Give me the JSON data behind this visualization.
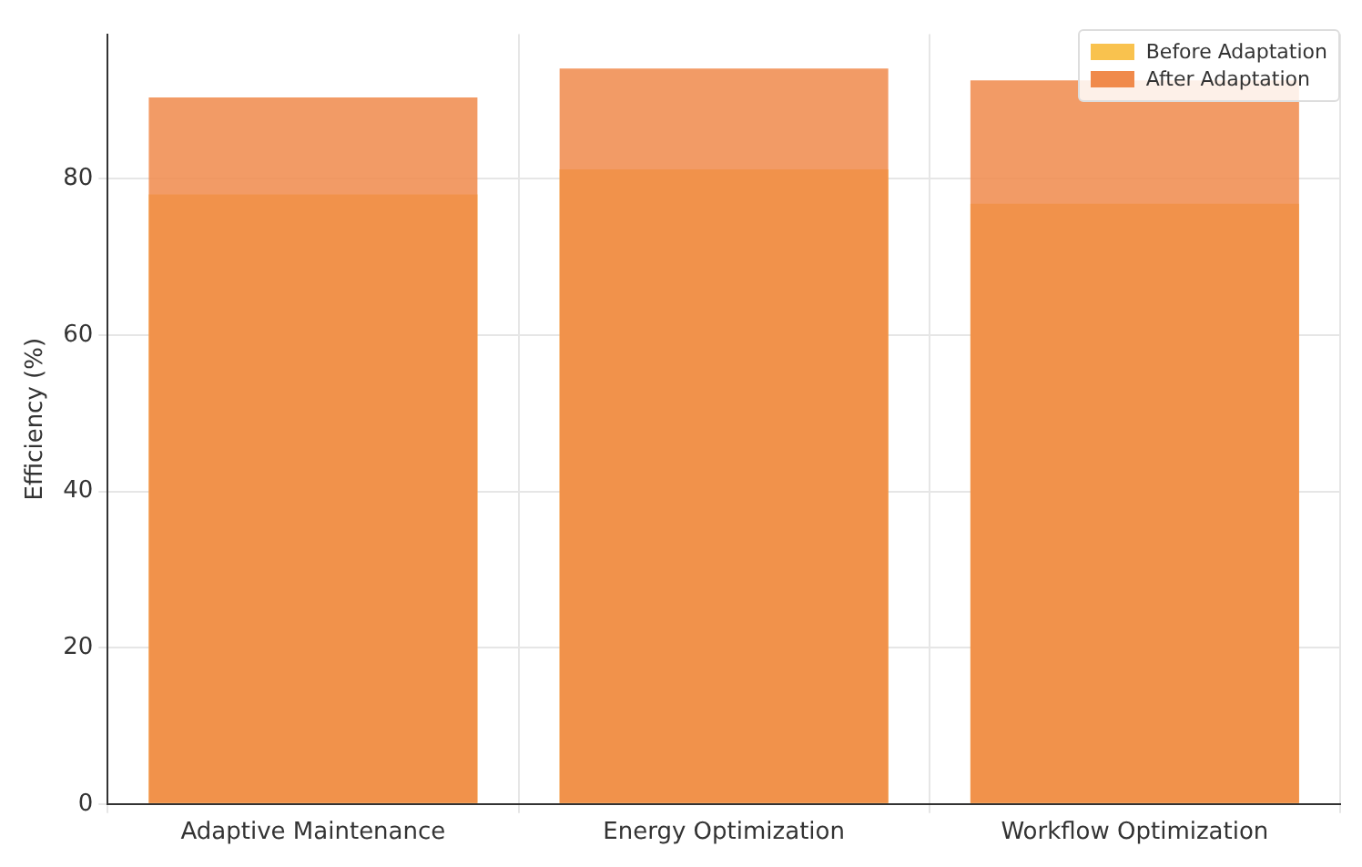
{
  "chart_data": {
    "type": "bar",
    "ylabel": "Efficiency (%)",
    "categories": [
      "Adaptive Maintenance",
      "Energy Optimization",
      "Workflow Optimization"
    ],
    "series": [
      {
        "name": "Before Adaptation",
        "color": "#f9c24e",
        "values": [
          78,
          81.2,
          76.8
        ]
      },
      {
        "name": "After Adaptation",
        "color": "#f08a4b",
        "values": [
          90.4,
          94.1,
          92.6
        ]
      }
    ],
    "ylim": [
      0,
      98.5
    ],
    "yticks": [
      0,
      20,
      40,
      60,
      80
    ],
    "grid": true,
    "legend": "top right"
  }
}
